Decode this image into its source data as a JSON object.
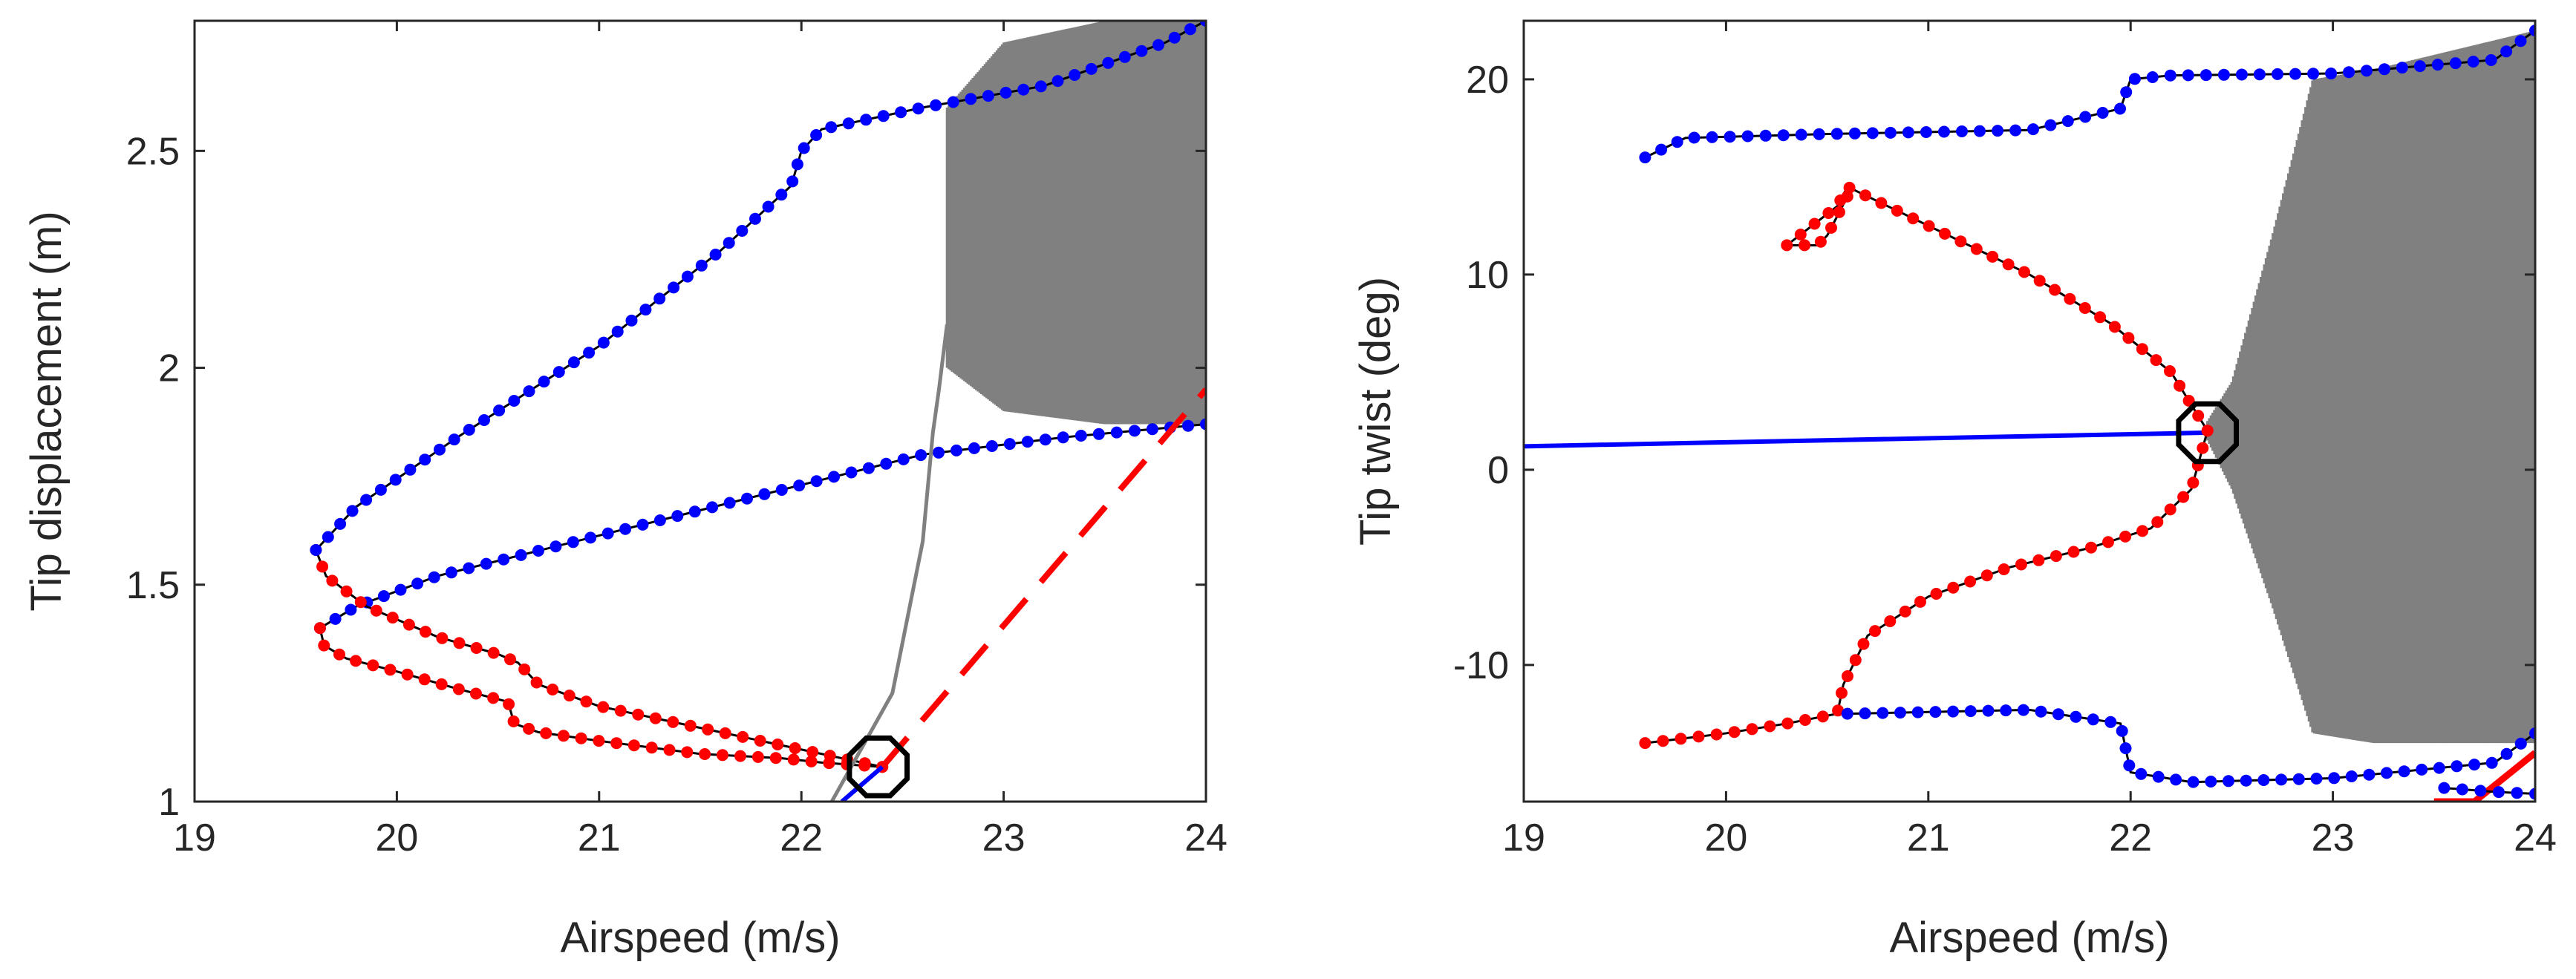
{
  "chart_data": [
    {
      "type": "line",
      "xlabel": "Airspeed (m/s)",
      "ylabel": "Tip displacement (m)",
      "xlim": [
        19,
        24
      ],
      "ylim": [
        1,
        2.8
      ],
      "xticks": [
        "19",
        "20",
        "21",
        "22",
        "23",
        "24"
      ],
      "xtick_values": [
        19,
        20,
        21,
        22,
        23,
        24
      ],
      "yticks": [
        "1",
        "1.5",
        "2",
        "2.5"
      ],
      "ytick_values": [
        1,
        1.5,
        2,
        2.5
      ],
      "grid": false,
      "colors": {
        "stable": "#0000ff",
        "unstable": "#ff0000",
        "transient": "#808080",
        "marker": "#000000",
        "axis": "#262626"
      },
      "series": [
        {
          "style": "blue-dots",
          "x": [
            24.0,
            23.3,
            22.6,
            22.0,
            21.4,
            20.8,
            20.2,
            19.8,
            19.62
          ],
          "y": [
            1.87,
            1.84,
            1.8,
            1.73,
            1.66,
            1.59,
            1.52,
            1.45,
            1.4
          ]
        },
        {
          "style": "red-dots",
          "x": [
            19.62,
            19.64,
            19.75,
            20.0,
            20.3,
            20.55,
            20.58,
            20.7,
            21.0,
            21.5,
            21.9,
            22.1,
            22.25,
            22.4
          ],
          "y": [
            1.4,
            1.36,
            1.33,
            1.3,
            1.26,
            1.23,
            1.18,
            1.16,
            1.14,
            1.11,
            1.1,
            1.09,
            1.085,
            1.08
          ]
        },
        {
          "style": "red-dots",
          "x": [
            22.4,
            22.2,
            21.9,
            21.5,
            21.0,
            20.7,
            20.6,
            20.5,
            20.2,
            19.85,
            19.65,
            19.6
          ],
          "y": [
            1.08,
            1.1,
            1.13,
            1.17,
            1.22,
            1.27,
            1.32,
            1.34,
            1.38,
            1.45,
            1.52,
            1.58
          ]
        },
        {
          "style": "blue-dots",
          "x": [
            19.6,
            19.8,
            20.3,
            21.0,
            21.6,
            21.95,
            22.0,
            22.1,
            22.6,
            23.2,
            23.8,
            24.0
          ],
          "y": [
            1.58,
            1.68,
            1.84,
            2.05,
            2.27,
            2.42,
            2.5,
            2.55,
            2.6,
            2.65,
            2.75,
            2.8
          ]
        },
        {
          "style": "red-dashed",
          "x": [
            22.4,
            24.0
          ],
          "y": [
            1.08,
            1.95
          ]
        },
        {
          "style": "blue-line",
          "x": [
            22.2,
            22.4
          ],
          "y": [
            1.0,
            1.08
          ]
        },
        {
          "style": "gray-transient",
          "x": [
            22.15,
            22.45,
            22.6,
            22.65,
            22.68,
            22.72
          ],
          "y": [
            1.0,
            1.25,
            1.6,
            1.85,
            1.95,
            2.1
          ]
        },
        {
          "style": "gray-oscillation-band",
          "x": [
            22.72,
            23.0,
            23.5,
            24.0
          ],
          "y_low": [
            2.0,
            1.9,
            1.87,
            1.87
          ],
          "y_high": [
            2.6,
            2.75,
            2.8,
            2.8
          ]
        }
      ],
      "annotations": [
        {
          "type": "circle-marker",
          "x": 22.38,
          "y": 1.08
        }
      ]
    },
    {
      "type": "line",
      "xlabel": "Airspeed (m/s)",
      "ylabel": "Tip twist (deg)",
      "xlim": [
        19,
        24
      ],
      "ylim": [
        -17,
        23
      ],
      "xticks": [
        "19",
        "20",
        "21",
        "22",
        "23",
        "24"
      ],
      "xtick_values": [
        19,
        20,
        21,
        22,
        23,
        24
      ],
      "yticks": [
        "-10",
        "0",
        "10",
        "20"
      ],
      "ytick_values": [
        -10,
        0,
        10,
        20
      ],
      "grid": false,
      "colors": {
        "stable": "#0000ff",
        "unstable": "#ff0000",
        "transient": "#808080",
        "marker": "#000000",
        "axis": "#262626"
      },
      "series": [
        {
          "style": "blue-line",
          "x": [
            19.0,
            22.38
          ],
          "y": [
            1.2,
            1.9
          ]
        },
        {
          "style": "red-dots",
          "x": [
            22.38,
            22.2,
            21.9,
            21.5,
            21.0,
            20.7,
            20.6,
            20.55,
            20.3,
            20.45,
            20.5,
            20.55,
            20.6
          ],
          "y": [
            2.0,
            5.0,
            7.5,
            10.0,
            12.5,
            14.0,
            14.5,
            13.5,
            11.5,
            11.5,
            12.0,
            13.0,
            14.0
          ]
        },
        {
          "style": "red-dots",
          "x": [
            22.38,
            22.3,
            22.1,
            21.8,
            21.4,
            21.0,
            20.7,
            20.58,
            20.55,
            20.3,
            20.0,
            19.6
          ],
          "y": [
            2.0,
            -1.0,
            -3.0,
            -4.0,
            -5.0,
            -6.5,
            -8.5,
            -11.0,
            -12.5,
            -13.0,
            -13.5,
            -14.0
          ]
        },
        {
          "style": "blue-dots",
          "x": [
            19.6,
            19.8,
            20.5,
            21.5,
            21.95,
            22.0,
            22.2,
            23.0,
            23.8,
            24.0
          ],
          "y": [
            16.0,
            17.0,
            17.2,
            17.4,
            18.5,
            20.0,
            20.2,
            20.3,
            21.0,
            22.5
          ]
        },
        {
          "style": "blue-dots",
          "x": [
            20.6,
            21.5,
            21.95,
            22.0,
            22.3,
            23.0,
            23.8,
            24.0
          ],
          "y": [
            -12.5,
            -12.3,
            -13.0,
            -15.5,
            -16.0,
            -15.8,
            -15.0,
            -13.5
          ]
        },
        {
          "style": "red-segments",
          "x": [
            23.5,
            23.7,
            24.0
          ],
          "y": [
            -17.0,
            -17.0,
            -14.5
          ]
        },
        {
          "style": "blue-dots",
          "x": [
            23.55,
            23.8,
            24.0
          ],
          "y": [
            -16.3,
            -16.5,
            -16.6
          ]
        },
        {
          "style": "gray-oscillation-band",
          "x": [
            22.38,
            22.5,
            22.7,
            22.9,
            23.2,
            23.6,
            24.0
          ],
          "y_low": [
            1.5,
            -1.0,
            -7.0,
            -13.5,
            -14.0,
            -14.0,
            -14.0
          ],
          "y_high": [
            2.5,
            4.5,
            12.0,
            20.0,
            20.5,
            21.5,
            22.5
          ]
        }
      ],
      "annotations": [
        {
          "type": "circle-marker",
          "x": 22.38,
          "y": 1.9
        }
      ]
    }
  ]
}
